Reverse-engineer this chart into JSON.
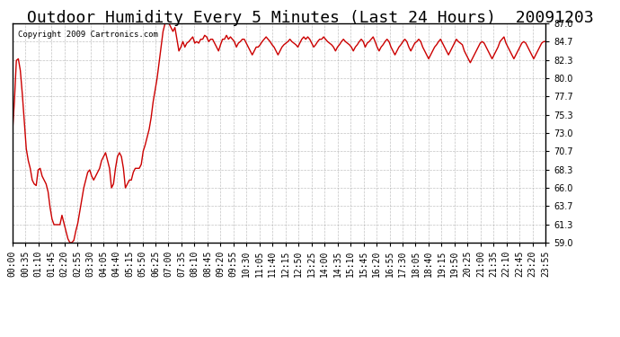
{
  "title": "Outdoor Humidity Every 5 Minutes (Last 24 Hours)  20091203",
  "copyright": "Copyright 2009 Cartronics.com",
  "line_color": "#cc0000",
  "bg_color": "#ffffff",
  "grid_color": "#aaaaaa",
  "ylim": [
    59.0,
    87.0
  ],
  "yticks": [
    59.0,
    61.3,
    63.7,
    66.0,
    68.3,
    70.7,
    73.0,
    75.3,
    77.7,
    80.0,
    82.3,
    84.7,
    87.0
  ],
  "title_fontsize": 13,
  "tick_fontsize": 7,
  "x_labels": [
    "00:00",
    "00:35",
    "01:10",
    "01:45",
    "02:20",
    "02:55",
    "03:30",
    "04:05",
    "04:40",
    "05:15",
    "05:50",
    "06:25",
    "07:00",
    "07:35",
    "08:10",
    "08:45",
    "09:20",
    "09:55",
    "10:30",
    "11:05",
    "11:40",
    "12:15",
    "12:50",
    "13:25",
    "14:00",
    "14:35",
    "15:10",
    "15:45",
    "16:20",
    "16:55",
    "17:30",
    "18:05",
    "18:40",
    "19:15",
    "19:50",
    "20:25",
    "21:00",
    "21:35",
    "22:10",
    "22:45",
    "23:20",
    "23:55"
  ],
  "y_values": [
    73.0,
    77.0,
    82.3,
    82.5,
    81.0,
    78.0,
    74.5,
    71.0,
    69.5,
    68.5,
    67.0,
    66.5,
    66.3,
    68.3,
    68.5,
    67.5,
    67.0,
    66.5,
    65.5,
    63.5,
    62.0,
    61.3,
    61.3,
    61.3,
    61.3,
    62.5,
    61.5,
    60.5,
    59.5,
    59.0,
    59.0,
    59.3,
    60.5,
    61.5,
    63.0,
    64.5,
    66.0,
    67.0,
    68.0,
    68.3,
    67.5,
    67.0,
    67.5,
    68.0,
    68.5,
    69.5,
    70.0,
    70.5,
    69.5,
    68.5,
    66.0,
    66.5,
    68.5,
    70.0,
    70.5,
    70.0,
    68.5,
    66.0,
    66.5,
    67.0,
    67.0,
    68.0,
    68.5,
    68.5,
    68.5,
    69.0,
    70.7,
    71.5,
    72.5,
    73.5,
    75.0,
    77.0,
    78.5,
    80.0,
    82.0,
    84.0,
    86.0,
    87.0,
    87.0,
    87.0,
    86.5,
    86.0,
    86.5,
    85.0,
    83.5,
    84.0,
    84.7,
    84.0,
    84.5,
    84.7,
    85.0,
    85.3,
    84.5,
    84.7,
    84.5,
    85.0,
    85.0,
    85.5,
    85.3,
    84.7,
    85.0,
    85.0,
    84.5,
    84.0,
    83.5,
    84.3,
    85.0,
    85.0,
    85.5,
    85.0,
    85.3,
    85.0,
    84.7,
    84.0,
    84.5,
    84.7,
    85.0,
    85.0,
    84.5,
    84.0,
    83.5,
    83.0,
    83.5,
    84.0,
    84.0,
    84.3,
    84.7,
    85.0,
    85.3,
    85.0,
    84.7,
    84.3,
    84.0,
    83.5,
    83.0,
    83.5,
    84.0,
    84.3,
    84.5,
    84.7,
    85.0,
    84.7,
    84.5,
    84.3,
    84.0,
    84.5,
    85.0,
    85.3,
    85.0,
    85.3,
    85.0,
    84.5,
    84.0,
    84.3,
    84.7,
    85.0,
    85.0,
    85.3,
    85.0,
    84.7,
    84.5,
    84.3,
    84.0,
    83.5,
    84.0,
    84.3,
    84.7,
    85.0,
    84.7,
    84.5,
    84.3,
    84.0,
    83.5,
    84.0,
    84.3,
    84.7,
    85.0,
    84.7,
    84.0,
    84.5,
    84.7,
    85.0,
    85.3,
    84.7,
    84.0,
    83.5,
    84.0,
    84.3,
    84.7,
    85.0,
    84.7,
    84.0,
    83.5,
    83.0,
    83.5,
    84.0,
    84.3,
    84.7,
    85.0,
    84.7,
    84.0,
    83.5,
    84.0,
    84.5,
    84.7,
    85.0,
    84.7,
    84.0,
    83.5,
    83.0,
    82.5,
    83.0,
    83.5,
    84.0,
    84.3,
    84.7,
    85.0,
    84.5,
    84.0,
    83.5,
    83.0,
    83.5,
    84.0,
    84.5,
    85.0,
    84.7,
    84.5,
    84.3,
    83.5,
    83.0,
    82.5,
    82.0,
    82.5,
    83.0,
    83.5,
    84.0,
    84.5,
    84.7,
    84.5,
    84.0,
    83.5,
    83.0,
    82.5,
    83.0,
    83.5,
    84.0,
    84.7,
    85.0,
    85.3,
    84.5,
    84.0,
    83.5,
    83.0,
    82.5,
    83.0,
    83.5,
    84.0,
    84.5,
    84.7,
    84.5,
    84.0,
    83.5,
    83.0,
    82.5,
    83.0,
    83.5,
    84.0,
    84.5,
    84.7,
    84.7
  ]
}
